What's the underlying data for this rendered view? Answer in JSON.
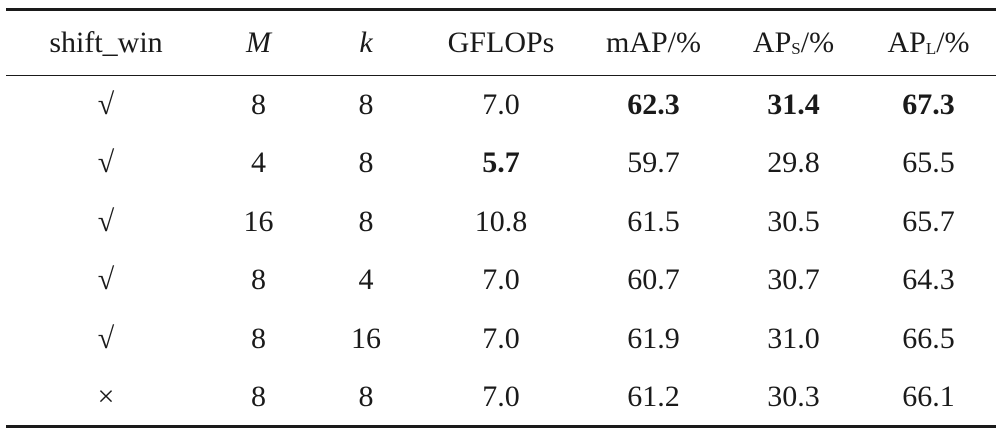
{
  "table": {
    "header": [
      "shift_win",
      "M",
      "k",
      "GFLOPs",
      "mAP/%",
      {
        "base": "AP",
        "sub": "S",
        "tail": "/%"
      },
      {
        "base": "AP",
        "sub": "L",
        "tail": "/%"
      }
    ],
    "rows": [
      [
        "√",
        "8",
        "8",
        "7.0",
        "62.3",
        "31.4",
        "67.3"
      ],
      [
        "√",
        "4",
        "8",
        "5.7",
        "59.7",
        "29.8",
        "65.5"
      ],
      [
        "√",
        "16",
        "8",
        "10.8",
        "61.5",
        "30.5",
        "65.7"
      ],
      [
        "√",
        "8",
        "4",
        "7.0",
        "60.7",
        "30.7",
        "64.3"
      ],
      [
        "√",
        "8",
        "16",
        "7.0",
        "61.9",
        "31.0",
        "66.5"
      ],
      [
        "×",
        "8",
        "8",
        "7.0",
        "61.2",
        "30.3",
        "66.1"
      ]
    ]
  }
}
